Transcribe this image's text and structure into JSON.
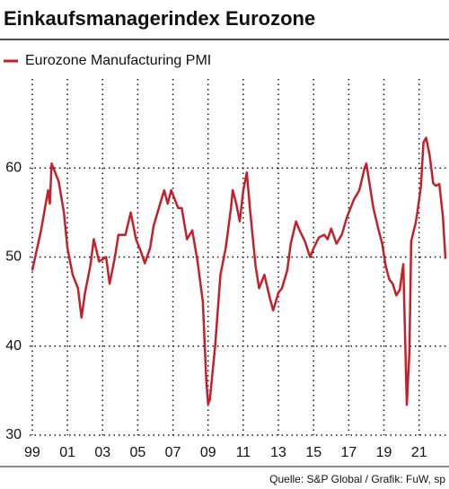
{
  "chart_data": {
    "type": "line",
    "title": "Einkaufsmanagerindex Eurozone",
    "source": "Quelle: S&P Global / Grafik: FuW, sp",
    "x": [
      1999.0,
      1999.5,
      1999.9,
      2000.0,
      2000.1,
      2000.5,
      2000.8,
      2001.0,
      2001.3,
      2001.6,
      2001.8,
      2002.0,
      2002.3,
      2002.5,
      2002.8,
      2003.2,
      2003.4,
      2003.7,
      2003.9,
      2004.3,
      2004.6,
      2004.9,
      2005.2,
      2005.4,
      2005.7,
      2005.9,
      2006.2,
      2006.5,
      2006.7,
      2006.9,
      2007.3,
      2007.5,
      2007.8,
      2008.1,
      2008.4,
      2008.7,
      2008.9,
      2009.0,
      2009.1,
      2009.4,
      2009.7,
      2010.0,
      2010.3,
      2010.4,
      2010.6,
      2010.8,
      2011.0,
      2011.2,
      2011.4,
      2011.7,
      2011.9,
      2012.2,
      2012.5,
      2012.7,
      2013.0,
      2013.2,
      2013.5,
      2013.7,
      2014.0,
      2014.2,
      2014.5,
      2014.8,
      2015.0,
      2015.3,
      2015.6,
      2015.8,
      2016.0,
      2016.3,
      2016.6,
      2016.9,
      2017.3,
      2017.6,
      2017.9,
      2018.0,
      2018.2,
      2018.4,
      2018.7,
      2018.9,
      2019.1,
      2019.3,
      2019.5,
      2019.7,
      2019.9,
      2020.1,
      2020.3,
      2020.45,
      2020.55,
      2020.8,
      2020.9,
      2021.1,
      2021.25,
      2021.4,
      2021.6,
      2021.8,
      2021.95,
      2022.15,
      2022.35,
      2022.5
    ],
    "series": [
      {
        "name": "Eurozone Manufacturing PMI",
        "color": "#c4202b",
        "values": [
          48.5,
          53,
          57.5,
          56,
          60.5,
          58.5,
          55,
          51,
          48,
          46.5,
          43.2,
          46,
          49,
          52,
          49.5,
          50,
          47,
          50,
          52.5,
          52.5,
          55,
          52,
          50.5,
          49.3,
          51,
          53.5,
          55.5,
          57.5,
          56,
          57.5,
          55.5,
          55.5,
          52,
          53,
          49.5,
          45,
          36,
          33.5,
          34,
          40,
          48,
          51,
          55.5,
          57.5,
          56,
          54,
          57.5,
          59.5,
          55,
          49,
          46.5,
          48,
          45.5,
          44,
          46,
          46.5,
          48.5,
          51.5,
          54,
          53,
          51.8,
          50,
          51,
          52.2,
          52.5,
          52,
          53.2,
          51.5,
          52.5,
          54.5,
          56.5,
          57.5,
          60,
          60.5,
          58,
          55.5,
          53,
          51.5,
          49,
          47.5,
          47,
          45.7,
          46.3,
          49.2,
          33.4,
          39.4,
          51.8,
          53.8,
          55,
          57.9,
          62.9,
          63.4,
          61.4,
          58.3,
          58,
          58.2,
          54.6,
          49.8
        ]
      }
    ],
    "xlim": [
      1998.85,
      2022.7
    ],
    "xticks": [
      {
        "value": 1999,
        "label": "99"
      },
      {
        "value": 2001,
        "label": "01"
      },
      {
        "value": 2003,
        "label": "03"
      },
      {
        "value": 2005,
        "label": "05"
      },
      {
        "value": 2007,
        "label": "07"
      },
      {
        "value": 2009,
        "label": "09"
      },
      {
        "value": 2011,
        "label": "11"
      },
      {
        "value": 2013,
        "label": "13"
      },
      {
        "value": 2015,
        "label": "15"
      },
      {
        "value": 2017,
        "label": "17"
      },
      {
        "value": 2019,
        "label": "19"
      },
      {
        "value": 2021,
        "label": "21"
      }
    ],
    "ylim": [
      30,
      70
    ],
    "yticks": [
      30,
      40,
      50,
      60
    ],
    "grid": true
  }
}
